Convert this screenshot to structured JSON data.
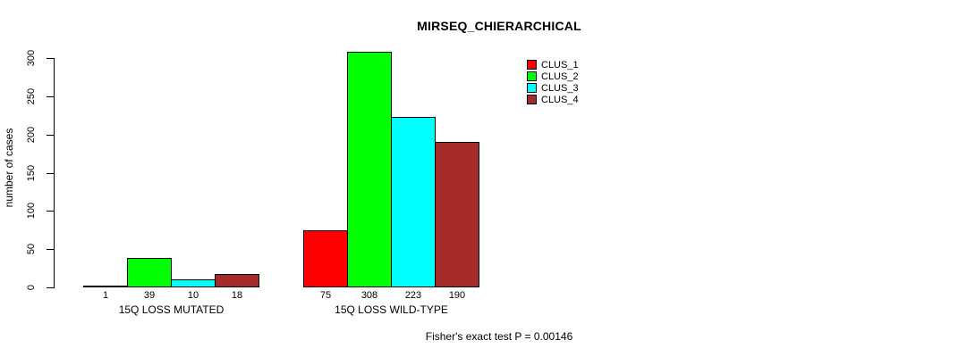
{
  "chart_data": {
    "type": "bar",
    "title": "MIRSEQ_CHIERARCHICAL",
    "ylabel": "number of cases",
    "xlabel": "",
    "categories": [
      "15Q LOSS MUTATED",
      "15Q LOSS WILD-TYPE"
    ],
    "series": [
      {
        "name": "CLUS_1",
        "color": "#FF0000",
        "values": [
          1,
          75
        ]
      },
      {
        "name": "CLUS_2",
        "color": "#00FF00",
        "values": [
          39,
          308
        ]
      },
      {
        "name": "CLUS_3",
        "color": "#00FFFF",
        "values": [
          10,
          223
        ]
      },
      {
        "name": "CLUS_4",
        "color": "#A52A2A",
        "values": [
          18,
          190
        ]
      }
    ],
    "bar_value_labels": [
      [
        "1",
        "39",
        "10",
        "18"
      ],
      [
        "75",
        "308",
        "223",
        "190"
      ]
    ],
    "yticks": [
      0,
      50,
      100,
      150,
      200,
      250,
      300
    ],
    "ylim": [
      0,
      300
    ],
    "grid": false,
    "legend_position": "top-right",
    "bar_border_color": "#000000",
    "text_color": "#000000",
    "background_color": "#FFFFFF",
    "annotation": "Fisher's exact test P = 0.00146"
  }
}
